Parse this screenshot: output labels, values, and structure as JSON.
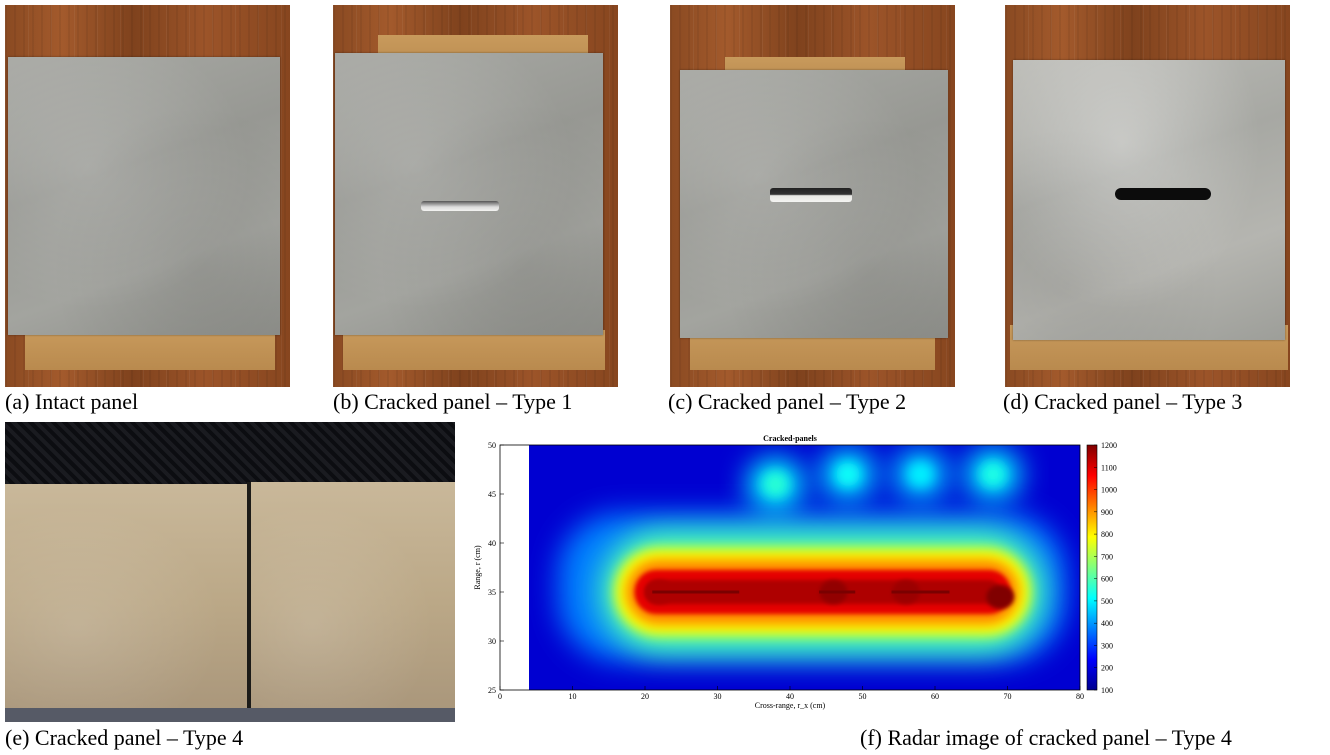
{
  "captions": {
    "a": "(a)  Intact panel",
    "b": "(b) Cracked panel – Type 1",
    "c": "(c) Cracked panel – Type 2",
    "d": "(d) Cracked panel – Type 3",
    "e": "(e)  Cracked panel – Type 4",
    "f": "(f) Radar image of cracked panel – Type 4"
  },
  "chart_data": {
    "type": "heatmap",
    "title": "Cracked-panels",
    "xlabel": "Cross-range, r_x (cm)",
    "ylabel": "Range, r (cm)",
    "xlim": [
      0,
      80
    ],
    "ylim": [
      25,
      50
    ],
    "xticks": [
      0,
      10,
      20,
      30,
      40,
      50,
      60,
      70,
      80
    ],
    "yticks": [
      25,
      30,
      35,
      40,
      45,
      50
    ],
    "colorbar": {
      "min": 100,
      "max": 1200,
      "ticks": [
        100,
        200,
        300,
        400,
        500,
        600,
        700,
        800,
        900,
        1000,
        1100,
        1200
      ],
      "colormap": "jet"
    },
    "image_x_extent": [
      4,
      80
    ],
    "features": [
      {
        "kind": "band",
        "x_range": [
          18,
          71
        ],
        "y_center": 35,
        "peak": 1150
      },
      {
        "kind": "hotspot",
        "x": 69,
        "y": 34.5,
        "value": 1200
      },
      {
        "kind": "hotspot",
        "x": 46,
        "y": 35,
        "value": 1180
      },
      {
        "kind": "hotspot",
        "x": 56,
        "y": 35,
        "value": 1170
      },
      {
        "kind": "hotspot",
        "x": 22,
        "y": 35,
        "value": 1150
      },
      {
        "kind": "blob",
        "x": 48,
        "y": 47,
        "value": 520
      },
      {
        "kind": "blob",
        "x": 58,
        "y": 47,
        "value": 500
      },
      {
        "kind": "blob",
        "x": 68,
        "y": 47,
        "value": 540
      },
      {
        "kind": "blob",
        "x": 38,
        "y": 46,
        "value": 560
      }
    ]
  }
}
